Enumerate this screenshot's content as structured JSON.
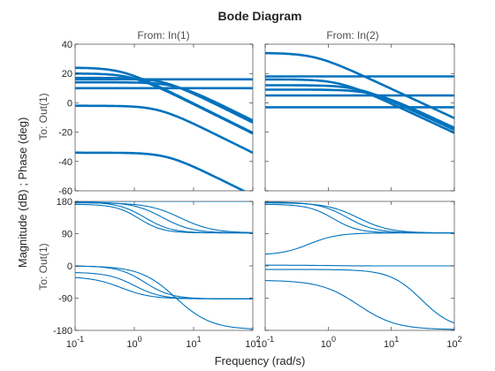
{
  "chart_data": {
    "type": "line",
    "title": "Bode Diagram",
    "xlabel": "Frequency  (rad/s)",
    "ylabel": "Magnitude (dB) ; Phase (deg)",
    "column_titles": [
      "From: In(1)",
      "From: In(2)"
    ],
    "row_labels": [
      "To: Out(1)",
      "To: Out(1)"
    ],
    "xscale": "log",
    "xlim": [
      0.1,
      100
    ],
    "x_ticks": [
      {
        "value": 0.1,
        "base": "10",
        "exp": "-1"
      },
      {
        "value": 1,
        "base": "10",
        "exp": "0"
      },
      {
        "value": 10,
        "base": "10",
        "exp": "1"
      },
      {
        "value": 100,
        "base": "10",
        "exp": "2"
      }
    ],
    "magnitude_ylim": [
      -60,
      40
    ],
    "magnitude_yticks": [
      "40",
      "20",
      "0",
      "-20",
      "-40",
      "-60"
    ],
    "phase_ylim": [
      -180,
      180
    ],
    "phase_yticks": [
      "180",
      "90",
      "0",
      "-90",
      "-180"
    ],
    "line_color": "#0072bd",
    "panels": [
      {
        "id": "mag-in1",
        "kind": "magnitude",
        "curves": [
          {
            "dc": 24,
            "corner": 0.6,
            "slope": -20
          },
          {
            "dc": 20,
            "corner": 0.9,
            "slope": -20
          },
          {
            "dc": 17,
            "corner": 3,
            "slope": -20
          },
          {
            "dc": 14,
            "corner": 5,
            "slope": -20
          },
          {
            "dc": -2,
            "corner": 2.5,
            "slope": -20
          },
          {
            "dc": -34,
            "corner": 3.5,
            "slope": -20
          },
          {
            "dc": 16,
            "corner": 1000,
            "slope": 0
          },
          {
            "dc": 10,
            "corner": 1000,
            "slope": 0
          }
        ]
      },
      {
        "id": "mag-in2",
        "kind": "magnitude",
        "curves": [
          {
            "dc": 34,
            "corner": 0.6,
            "slope": -20
          },
          {
            "dc": 16,
            "corner": 1.5,
            "slope": -20
          },
          {
            "dc": 12,
            "corner": 3,
            "slope": -20
          },
          {
            "dc": 9,
            "corner": 5,
            "slope": -20
          },
          {
            "dc": -3,
            "corner": 1000,
            "slope": 0
          },
          {
            "dc": 5,
            "corner": 1000,
            "slope": 0
          },
          {
            "dc": 18,
            "corner": 1000,
            "slope": 0
          }
        ]
      },
      {
        "id": "phase-in1",
        "kind": "phase",
        "curves": [
          {
            "start": 180,
            "end": 180,
            "center": 2,
            "width": 1.2
          },
          {
            "start": 178,
            "end": 92,
            "center": 1.5,
            "width": 0.9
          },
          {
            "start": 178,
            "end": 92,
            "center": 3,
            "width": 1
          },
          {
            "start": 176,
            "end": 92,
            "center": 6,
            "width": 1.1
          },
          {
            "start": 172,
            "end": 92,
            "center": 1.2,
            "width": 0.8
          },
          {
            "start": 0,
            "end": -92,
            "center": 1.5,
            "width": 0.9
          },
          {
            "start": -18,
            "end": -92,
            "center": 1,
            "width": 0.9
          },
          {
            "start": -30,
            "end": -92,
            "center": 0.6,
            "width": 1
          },
          {
            "start": 0,
            "end": -178,
            "center": 5,
            "width": 1.2
          }
        ]
      },
      {
        "id": "phase-in2",
        "kind": "phase",
        "curves": [
          {
            "start": 178,
            "end": 92,
            "center": 2,
            "width": 0.9
          },
          {
            "start": 176,
            "end": 92,
            "center": 3,
            "width": 1
          },
          {
            "start": 172,
            "end": 92,
            "center": 1.2,
            "width": 0.8
          },
          {
            "start": 30,
            "end": 92,
            "center": 0.5,
            "width": 0.9
          },
          {
            "start": 2,
            "end": 0,
            "center": 1,
            "width": 1
          },
          {
            "start": -40,
            "end": -178,
            "center": 3,
            "width": 1.2
          },
          {
            "start": -10,
            "end": -178,
            "center": 30,
            "width": 1
          }
        ]
      }
    ]
  }
}
